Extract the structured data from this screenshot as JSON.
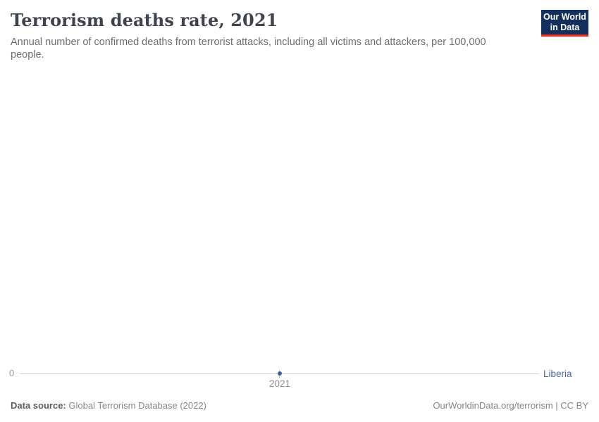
{
  "header": {
    "title": "Terrorism deaths rate, 2021",
    "subtitle": "Annual number of confirmed deaths from terrorist attacks, including all victims and attackers, per 100,000 people.",
    "logo": {
      "line1": "Our World",
      "line2": "in Data",
      "background_color": "#12305b",
      "accent_color": "#e2301c"
    }
  },
  "chart_data": {
    "type": "line",
    "title": "Terrorism deaths rate, 2021",
    "series": [
      {
        "name": "Liberia",
        "x": [
          2021
        ],
        "values": [
          0
        ]
      }
    ],
    "x_ticks": [
      "2021"
    ],
    "y_ticks": [
      "0"
    ],
    "ylim": [
      0,
      null
    ],
    "grid": false,
    "legend_position": "right-end-of-line",
    "accent_color": "#4c6a9c",
    "point_color": "#3d6399",
    "axis_line_color": "#cfcfcf"
  },
  "footer": {
    "source_label": "Data source:",
    "source_value": " Global Terrorism Database (2022)",
    "credit": "OurWorldinData.org/terrorism | CC BY"
  }
}
